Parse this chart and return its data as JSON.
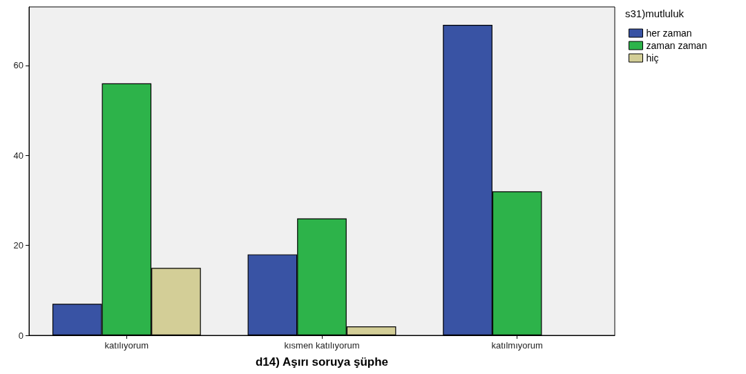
{
  "chart_data": {
    "type": "bar",
    "xlabel": "d14) Aşırı soruya şüphe",
    "legend_title": "s31)mutluluk",
    "categories": [
      "katılıyorum",
      "kısmen katılıyorum",
      "katılmıyorum"
    ],
    "series": [
      {
        "name": "her zaman",
        "color": "#3953a4",
        "values": [
          7,
          18,
          69
        ]
      },
      {
        "name": "zaman zaman",
        "color": "#2db34a",
        "values": [
          56,
          26,
          32
        ]
      },
      {
        "name": "hiç",
        "color": "#d3ce97",
        "values": [
          15,
          2,
          null
        ]
      }
    ],
    "ylim": [
      0,
      73
    ],
    "yticks": [
      0,
      20,
      40,
      60
    ],
    "grid": false,
    "legend": "top right"
  }
}
